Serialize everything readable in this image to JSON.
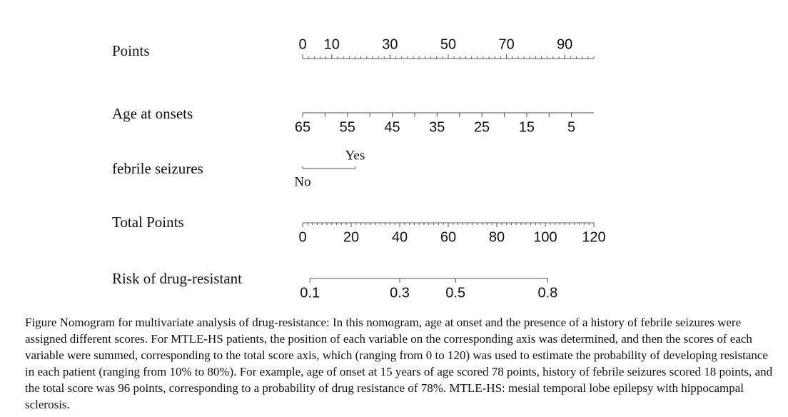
{
  "chart_data": {
    "type": "nomogram",
    "axes": [
      {
        "kind": "scale",
        "label": "Points",
        "xlim": [
          0,
          100
        ],
        "ticks": [
          0,
          10,
          30,
          50,
          70,
          90
        ],
        "minor_step": 2,
        "tick_side": "up"
      },
      {
        "kind": "scale",
        "label": "Age at onsets",
        "xlim": [
          65,
          0
        ],
        "ticks": [
          65,
          55,
          45,
          35,
          25,
          15,
          5
        ],
        "minor_ticks": [
          60,
          50,
          40,
          30,
          20,
          10
        ],
        "tick_side": "down"
      },
      {
        "kind": "categorical",
        "label": "febrile seizures",
        "categories": [
          "No",
          "Yes"
        ],
        "values": [
          0,
          18
        ]
      },
      {
        "kind": "scale",
        "label": "Total   Points",
        "xlim": [
          0,
          120
        ],
        "ticks": [
          0,
          20,
          40,
          60,
          80,
          100,
          120
        ],
        "minor_step": 2,
        "tick_side": "down"
      },
      {
        "kind": "risk",
        "label": "Risk of drug-resistant",
        "ticks": [
          0.1,
          0.3,
          0.5,
          0.8
        ],
        "at_total_points": [
          3,
          40,
          63,
          101
        ]
      }
    ]
  },
  "caption": "Figure  Nomogram for multivariate analysis of drug-resistance: In this nomogram, age at onset and the presence of a history of febrile seizures were assigned different scores. For MTLE-HS patients, the position of each variable on the corresponding axis was determined, and then the scores of each variable were summed, corresponding to the total score axis, which (ranging from 0 to 120) was used to estimate the probability of developing resistance in each patient (ranging from 10% to 80%). For example, age of onset at 15 years of age scored 78 points, history of febrile seizures scored 18 points, and the total score was 96 points, corresponding to a probability of drug resistance of 78%. MTLE-HS: mesial temporal lobe epilepsy with hippocampal sclerosis."
}
